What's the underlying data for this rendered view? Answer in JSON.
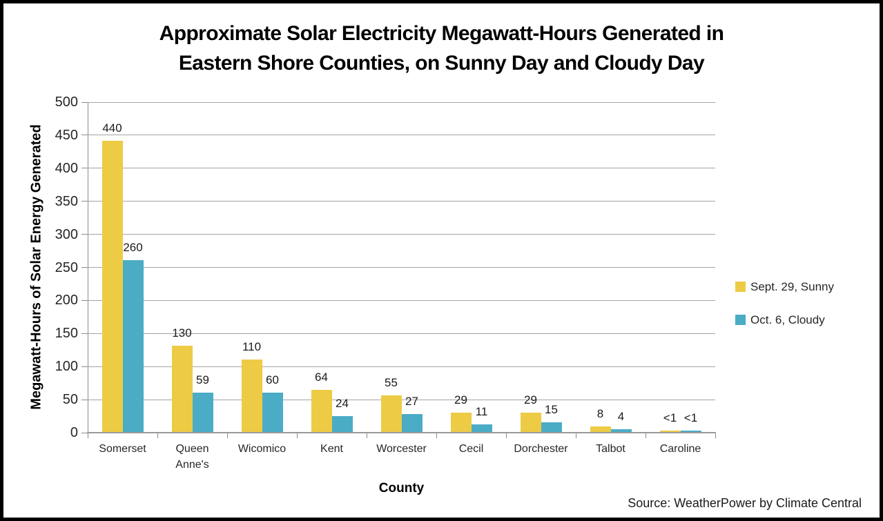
{
  "chart_data": {
    "type": "bar",
    "title": "Approximate Solar Electricity Megawatt-Hours Generated in Eastern Shore Counties, on Sunny Day and Cloudy Day",
    "title_lines": [
      "Approximate Solar Electricity Megawatt-Hours Generated in",
      "Eastern Shore Counties, on Sunny Day and Cloudy Day"
    ],
    "categories": [
      "Somerset",
      "Queen\nAnne's",
      "Wicomico",
      "Kent",
      "Worcester",
      "Cecil",
      "Dorchester",
      "Talbot",
      "Caroline"
    ],
    "series": [
      {
        "name": "Sept. 29, Sunny",
        "color": "#edcb45",
        "values": [
          440,
          130,
          110,
          64,
          55,
          29,
          29,
          8,
          0.5
        ],
        "labels": [
          "440",
          "130",
          "110",
          "64",
          "55",
          "29",
          "29",
          "8",
          "<1"
        ]
      },
      {
        "name": "Oct. 6, Cloudy",
        "color": "#4bacc6",
        "values": [
          260,
          59,
          60,
          24,
          27,
          11,
          15,
          4,
          0.5
        ],
        "labels": [
          "260",
          "59",
          "60",
          "24",
          "27",
          "11",
          "15",
          "4",
          "<1"
        ]
      }
    ],
    "xlabel": "County",
    "ylabel": "Megawatt-Hours of Solar Energy Generated",
    "ylim": [
      0,
      500
    ],
    "ytick_step": 50,
    "grid": true,
    "legend_position": "right"
  },
  "source_note": "Source: WeatherPower by Climate Central",
  "colors": {
    "series_sunny": "#edcb45",
    "series_cloudy": "#4bacc6",
    "gridline": "#a3a3a3",
    "axis": "#8c8c8c",
    "frame_border": "#000000",
    "background": "#ffffff",
    "text": "#1a1a1a"
  }
}
